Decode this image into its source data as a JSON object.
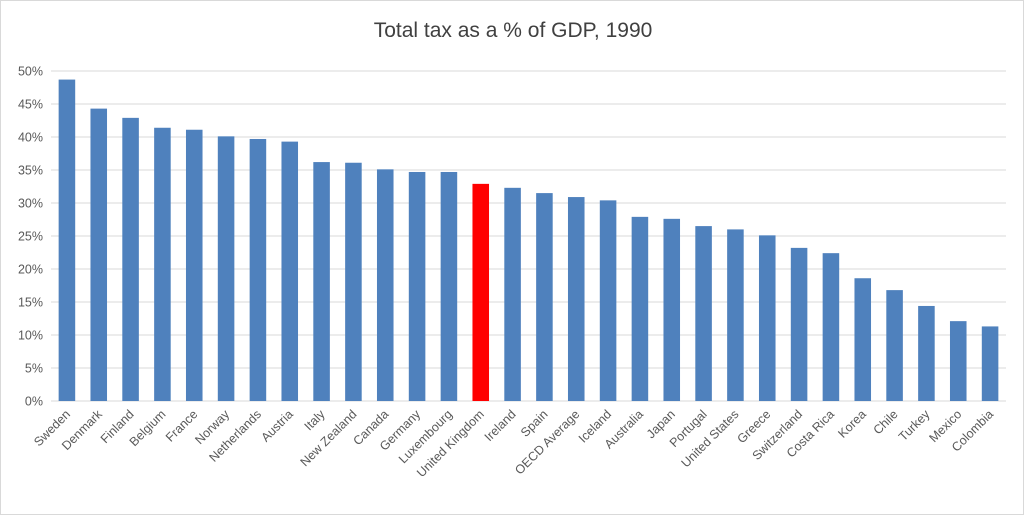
{
  "chart_data": {
    "type": "bar",
    "title": "Total tax as a % of GDP, 1990",
    "xlabel": "",
    "ylabel": "",
    "ylim": [
      0,
      50
    ],
    "yticks": [
      "0%",
      "5%",
      "10%",
      "15%",
      "20%",
      "25%",
      "30%",
      "35%",
      "40%",
      "45%",
      "50%"
    ],
    "grid": true,
    "legend": "none",
    "categories": [
      "Sweden",
      "Denmark",
      "Finland",
      "Belgium",
      "France",
      "Norway",
      "Netherlands",
      "Austria",
      "Italy",
      "New Zealand",
      "Canada",
      "Germany",
      "Luxembourg",
      "United Kingdom",
      "Ireland",
      "Spain",
      "OECD Average",
      "Iceland",
      "Australia",
      "Japan",
      "Portugal",
      "United States",
      "Greece",
      "Switzerland",
      "Costa Rica",
      "Korea",
      "Chile",
      "Turkey",
      "Mexico",
      "Colombia"
    ],
    "values": [
      48.7,
      44.3,
      42.9,
      41.4,
      41.1,
      40.1,
      39.7,
      39.3,
      36.2,
      36.1,
      35.1,
      34.7,
      34.7,
      32.9,
      32.3,
      31.5,
      30.9,
      30.4,
      27.9,
      27.6,
      26.5,
      26.0,
      25.1,
      23.2,
      22.4,
      18.6,
      16.8,
      14.4,
      12.1,
      11.3
    ],
    "highlight_category": "United Kingdom",
    "colors": {
      "bar": "#4f81bd",
      "highlight": "#ff0000",
      "grid": "#d9d9d9",
      "text": "#595959"
    }
  }
}
